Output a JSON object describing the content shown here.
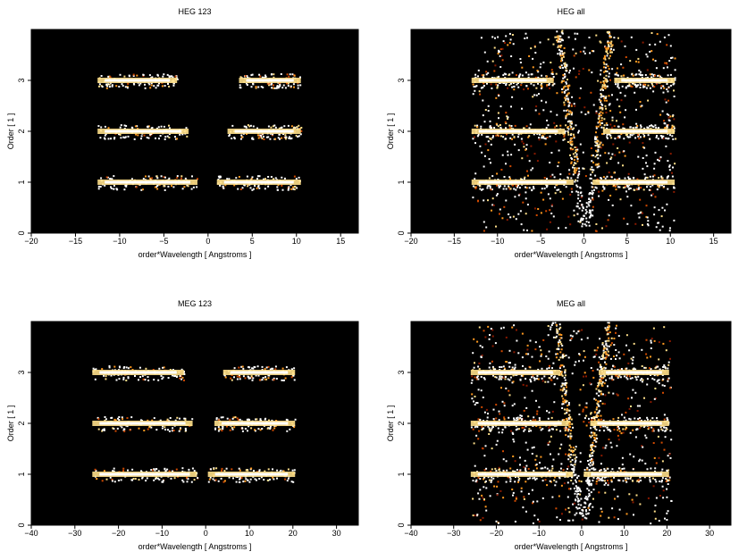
{
  "chart_data": [
    {
      "type": "heatmap",
      "title": "HEG 123",
      "xlabel": "order*Wavelength [ Angstroms ]",
      "ylabel": "Order [ 1 ]",
      "xlim": [
        -20,
        17
      ],
      "ylim": [
        0,
        4
      ],
      "xticks": [
        -20,
        -15,
        -10,
        -5,
        0,
        5,
        10,
        15
      ],
      "yticks": [
        0,
        1,
        2,
        3
      ],
      "background": "#000000",
      "colormap": [
        "#3a0000",
        "#8b1a00",
        "#d14a00",
        "#ff9a20",
        "#ffe08a",
        "#ffffff"
      ],
      "bands": [
        {
          "order": 1,
          "x_ranges": [
            [
              -12.5,
              -1.2
            ],
            [
              1.0,
              10.5
            ]
          ]
        },
        {
          "order": 2,
          "x_ranges": [
            [
              -12.5,
              -2.2
            ],
            [
              2.2,
              10.5
            ]
          ]
        },
        {
          "order": 3,
          "x_ranges": [
            [
              -12.5,
              -3.5
            ],
            [
              3.5,
              10.5
            ]
          ]
        }
      ],
      "zero_order_arm": false
    },
    {
      "type": "heatmap",
      "title": "HEG all",
      "xlabel": "order*Wavelength [ Angstroms ]",
      "ylabel": "Order [ 1 ]",
      "xlim": [
        -20,
        17
      ],
      "ylim": [
        0,
        4
      ],
      "xticks": [
        -20,
        -15,
        -10,
        -5,
        0,
        5,
        10,
        15
      ],
      "yticks": [
        0,
        1,
        2,
        3
      ],
      "background": "#000000",
      "colormap": [
        "#3a0000",
        "#8b1a00",
        "#d14a00",
        "#ff9a20",
        "#ffe08a",
        "#ffffff"
      ],
      "bands": [
        {
          "order": 1,
          "x_ranges": [
            [
              -13,
              -1.2
            ],
            [
              1.0,
              10.5
            ]
          ]
        },
        {
          "order": 2,
          "x_ranges": [
            [
              -13,
              -2.2
            ],
            [
              2.2,
              10.5
            ]
          ]
        },
        {
          "order": 3,
          "x_ranges": [
            [
              -13,
              -3.5
            ],
            [
              3.5,
              10.5
            ]
          ]
        }
      ],
      "background_scatter_x_range": [
        -13,
        10.5
      ],
      "zero_order_arm": true
    },
    {
      "type": "heatmap",
      "title": "MEG 123",
      "xlabel": "order*Wavelength [ Angstroms ]",
      "ylabel": "Order [ 1 ]",
      "xlim": [
        -40,
        35
      ],
      "ylim": [
        0,
        4
      ],
      "xticks": [
        -40,
        -30,
        -20,
        -10,
        0,
        10,
        20,
        30
      ],
      "yticks": [
        0,
        1,
        2,
        3
      ],
      "background": "#000000",
      "colormap": [
        "#3a0000",
        "#8b1a00",
        "#d14a00",
        "#ff9a20",
        "#ffe08a",
        "#ffffff"
      ],
      "bands": [
        {
          "order": 1,
          "x_ranges": [
            [
              -26,
              -2
            ],
            [
              0.5,
              20.5
            ]
          ]
        },
        {
          "order": 2,
          "x_ranges": [
            [
              -26,
              -3
            ],
            [
              2,
              20.5
            ]
          ]
        },
        {
          "order": 3,
          "x_ranges": [
            [
              -26,
              -5
            ],
            [
              4,
              20.5
            ]
          ]
        }
      ],
      "zero_order_arm": false
    },
    {
      "type": "heatmap",
      "title": "MEG all",
      "xlabel": "order*Wavelength [ Angstroms ]",
      "ylabel": "Order [ 1 ]",
      "xlim": [
        -40,
        35
      ],
      "ylim": [
        0,
        4
      ],
      "xticks": [
        -40,
        -30,
        -20,
        -10,
        0,
        10,
        20,
        30
      ],
      "yticks": [
        0,
        1,
        2,
        3
      ],
      "background": "#000000",
      "colormap": [
        "#3a0000",
        "#8b1a00",
        "#d14a00",
        "#ff9a20",
        "#ffe08a",
        "#ffffff"
      ],
      "bands": [
        {
          "order": 1,
          "x_ranges": [
            [
              -26,
              -2
            ],
            [
              0.5,
              20.5
            ]
          ]
        },
        {
          "order": 2,
          "x_ranges": [
            [
              -26,
              -3
            ],
            [
              2,
              20.5
            ]
          ]
        },
        {
          "order": 3,
          "x_ranges": [
            [
              -26,
              -5
            ],
            [
              4,
              20.5
            ]
          ]
        }
      ],
      "background_scatter_x_range": [
        -26,
        21
      ],
      "zero_order_arm": true
    }
  ]
}
